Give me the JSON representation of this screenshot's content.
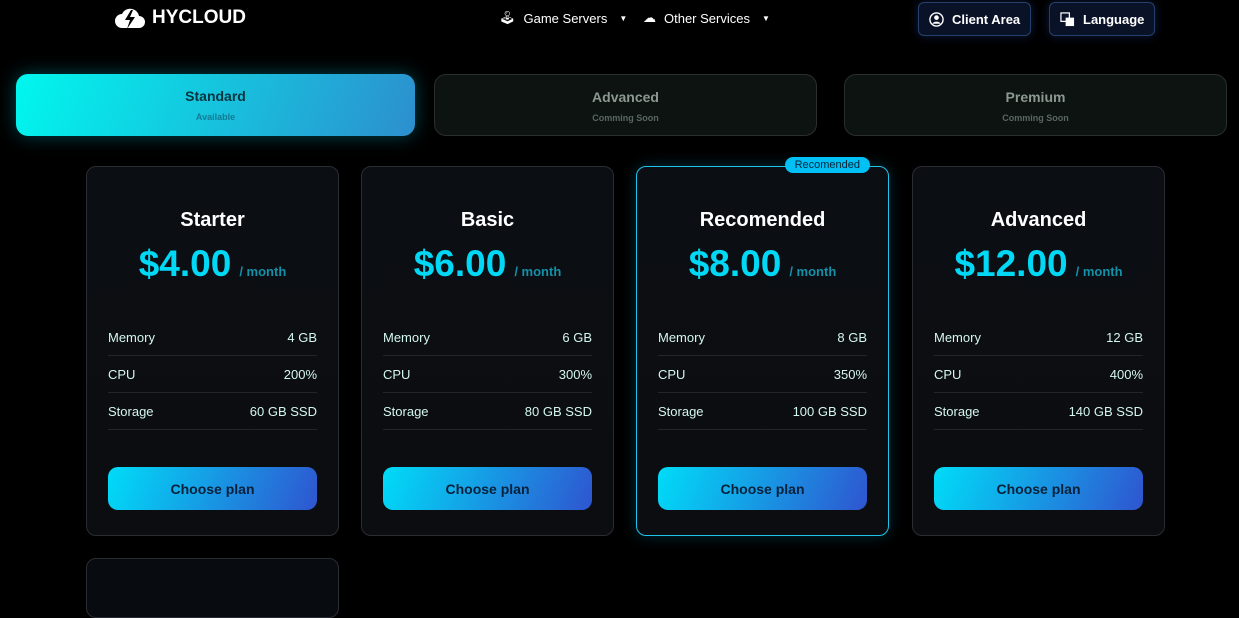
{
  "nav": {
    "brand": "HYCLOUD",
    "menu": [
      {
        "label": "Game Servers",
        "icon": "joystick-icon"
      },
      {
        "label": "Other Services",
        "icon": "cloud-icon"
      }
    ],
    "client_area": "Client Area",
    "language": "Language"
  },
  "tabs": [
    {
      "title": "Standard",
      "status": "Available",
      "active": true
    },
    {
      "title": "Advanced",
      "status": "Comming Soon",
      "active": false
    },
    {
      "title": "Premium",
      "status": "Comming Soon",
      "active": false
    }
  ],
  "plans": [
    {
      "name": "Starter",
      "price": "$4.00",
      "period": "/ month",
      "specs": [
        [
          "Memory",
          "4 GB"
        ],
        [
          "CPU",
          "200%"
        ],
        [
          "Storage",
          "60 GB SSD"
        ]
      ],
      "button": "Choose plan"
    },
    {
      "name": "Basic",
      "price": "$6.00",
      "period": "/ month",
      "specs": [
        [
          "Memory",
          "6 GB"
        ],
        [
          "CPU",
          "300%"
        ],
        [
          "Storage",
          "80 GB SSD"
        ]
      ],
      "button": "Choose plan"
    },
    {
      "name": "Recomended",
      "price": "$8.00",
      "period": "/ month",
      "badge": "Recomended",
      "specs": [
        [
          "Memory",
          "8 GB"
        ],
        [
          "CPU",
          "350%"
        ],
        [
          "Storage",
          "100 GB SSD"
        ]
      ],
      "button": "Choose plan"
    },
    {
      "name": "Advanced",
      "price": "$12.00",
      "period": "/ month",
      "specs": [
        [
          "Memory",
          "12 GB"
        ],
        [
          "CPU",
          "400%"
        ],
        [
          "Storage",
          "140 GB SSD"
        ]
      ],
      "button": "Choose plan"
    }
  ],
  "colors": {
    "accent": "#00d8f5",
    "background": "#000000"
  }
}
